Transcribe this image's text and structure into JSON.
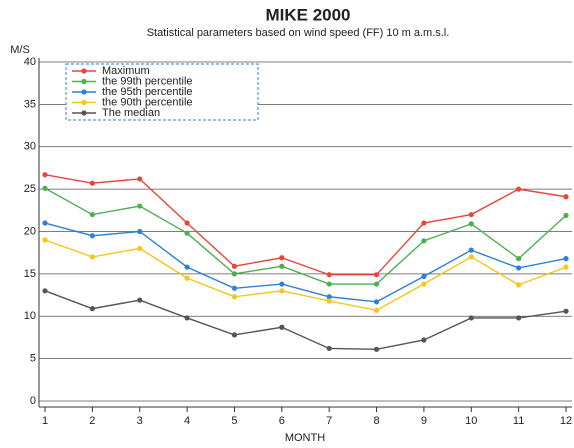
{
  "chart_data": {
    "type": "line",
    "title": "MIKE 2000",
    "subtitle": "Statistical parameters based on wind speed (FF) 10 m a.m.s.l.",
    "y_label": "M/S",
    "x_label": "MONTH",
    "x": [
      1,
      2,
      3,
      4,
      5,
      6,
      7,
      8,
      9,
      10,
      11,
      12
    ],
    "xlim": [
      1,
      12
    ],
    "xticks": [
      1,
      2,
      3,
      4,
      5,
      6,
      7,
      8,
      9,
      10,
      11,
      12
    ],
    "ylim": [
      0,
      40
    ],
    "yticks": [
      0,
      5,
      10,
      15,
      20,
      25,
      30,
      35,
      40
    ],
    "grid": true,
    "legend": "top-left",
    "series": [
      {
        "name": "Maximum",
        "color": "#e8453c",
        "values": [
          26.7,
          25.7,
          26.2,
          21,
          15.9,
          16.9,
          14.9,
          14.9,
          21,
          22,
          25,
          24.1
        ]
      },
      {
        "name": "the 99th percentile",
        "color": "#4caf50",
        "values": [
          25.1,
          22,
          23,
          19.8,
          15,
          15.9,
          13.8,
          13.8,
          18.9,
          20.9,
          16.8,
          21.9
        ]
      },
      {
        "name": "the 95th percentile",
        "color": "#2f7fd8",
        "values": [
          21,
          19.5,
          20,
          15.8,
          13.3,
          13.8,
          12.3,
          11.7,
          14.7,
          17.8,
          15.7,
          16.8
        ]
      },
      {
        "name": "the 90th percentile",
        "color": "#f5c518",
        "values": [
          19,
          17,
          18,
          14.5,
          12.3,
          13,
          11.8,
          10.7,
          13.8,
          17,
          13.7,
          15.8
        ]
      },
      {
        "name": "The median",
        "color": "#555555",
        "values": [
          13,
          10.9,
          11.9,
          9.8,
          7.8,
          8.7,
          6.2,
          6.1,
          7.2,
          9.8,
          9.8,
          10.6
        ]
      }
    ]
  }
}
